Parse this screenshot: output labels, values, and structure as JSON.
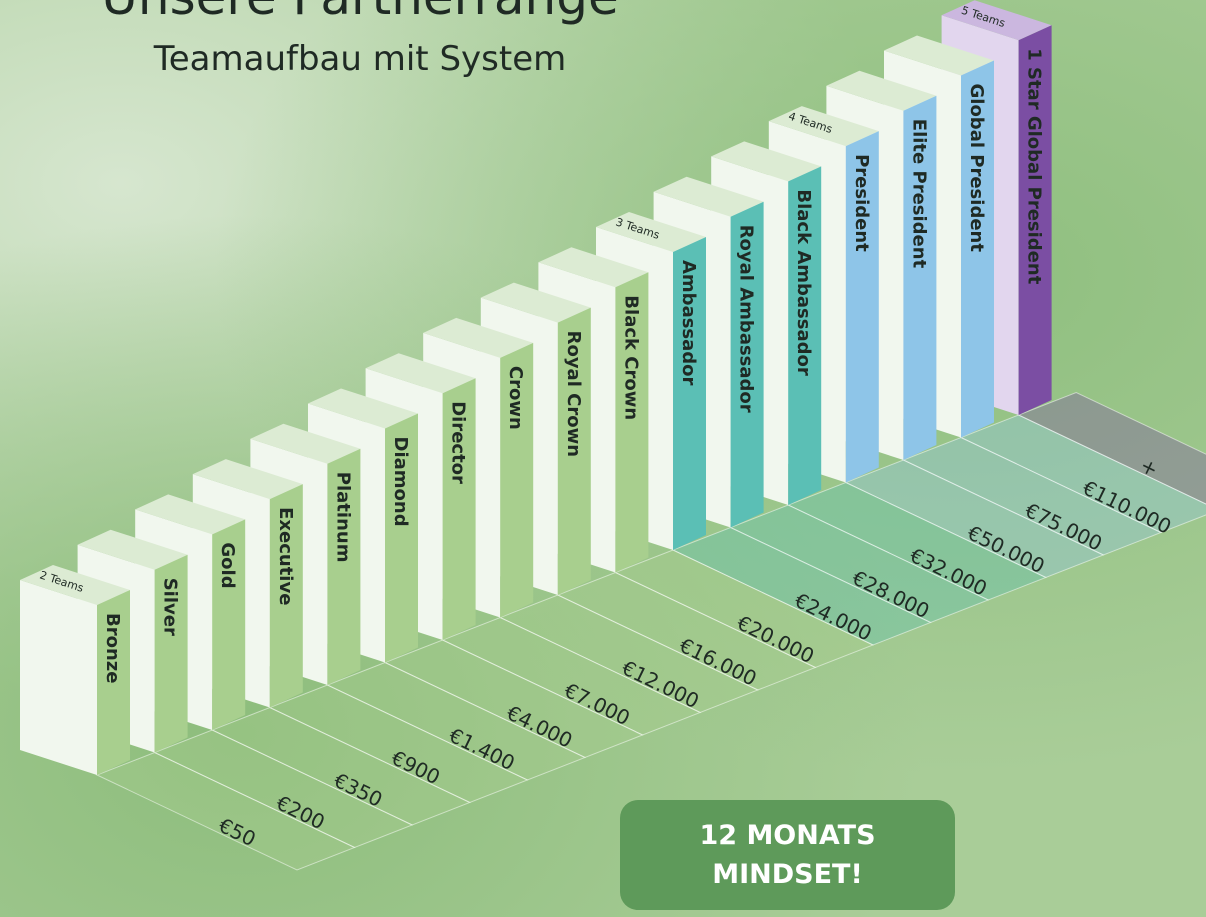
{
  "header": {
    "title": "Unsere Partnerränge",
    "subtitle": "Teamaufbau mit System"
  },
  "ranks": [
    {
      "name": "Bronze",
      "amount": "€50",
      "teams": "2 Teams",
      "color": "#a8cf8e"
    },
    {
      "name": "Silver",
      "amount": "€200",
      "color": "#a8cf8e"
    },
    {
      "name": "Gold",
      "amount": "€350",
      "color": "#a8cf8e"
    },
    {
      "name": "Executive",
      "amount": "€900",
      "color": "#a8cf8e"
    },
    {
      "name": "Platinum",
      "amount": "€1.400",
      "color": "#a8cf8e"
    },
    {
      "name": "Diamond",
      "amount": "€4.000",
      "color": "#a8cf8e"
    },
    {
      "name": "Director",
      "amount": "€7.000",
      "color": "#a8cf8e"
    },
    {
      "name": "Crown",
      "amount": "€12.000",
      "color": "#a8cf8e"
    },
    {
      "name": "Royal Crown",
      "amount": "€16.000",
      "color": "#a8cf8e"
    },
    {
      "name": "Black Crown",
      "amount": "€20.000",
      "color": "#a8cf8e"
    },
    {
      "name": "Ambassador",
      "amount": "€24.000",
      "teams": "3 Teams",
      "color": "#5bbfb5"
    },
    {
      "name": "Royal Ambassador",
      "amount": "€28.000",
      "color": "#5bbfb5"
    },
    {
      "name": "Black Ambassador",
      "amount": "€32.000",
      "color": "#5bbfb5"
    },
    {
      "name": "President",
      "amount": "€50.000",
      "teams": "4 Teams",
      "color": "#8ec5e8"
    },
    {
      "name": "Elite President",
      "amount": "€75.000",
      "color": "#8ec5e8"
    },
    {
      "name": "Global President",
      "amount": "€110.000",
      "color": "#8ec5e8"
    },
    {
      "name": "1 Star Global President",
      "amount": "+",
      "teams": "5 Teams",
      "color": "#7b4ea3"
    }
  ],
  "badge": {
    "text": "12 MONATS MINDSET!"
  }
}
